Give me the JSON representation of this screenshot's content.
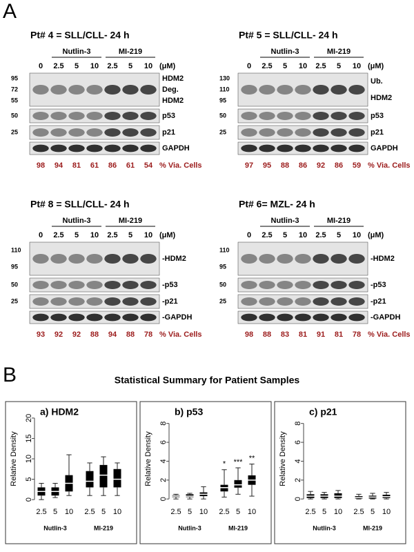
{
  "panel_labels": [
    "A",
    "B"
  ],
  "blots": [
    {
      "title": "Pt# 4 = SLL/CLL- 24 h",
      "groups": [
        "Nutlin-3",
        "MI-219"
      ],
      "doses": [
        "0",
        "2.5",
        "5",
        "10",
        "2.5",
        "5",
        "10"
      ],
      "unit": "(μM)",
      "strips": [
        {
          "markers": [
            "95",
            "72",
            "55"
          ],
          "labels": [
            "HDM2",
            "Deg.",
            "HDM2"
          ]
        },
        {
          "markers": [
            "50"
          ],
          "labels": [
            "p53"
          ]
        },
        {
          "markers": [
            "25"
          ],
          "labels": [
            "p21"
          ]
        },
        {
          "labels": [
            "GAPDH"
          ]
        }
      ],
      "viability": [
        98,
        94,
        81,
        61,
        86,
        61,
        54
      ],
      "viability_label": "% Via. Cells"
    },
    {
      "title": "Pt# 5 = SLL/CLL- 24 h",
      "groups": [
        "Nutlin-3",
        "MI-219"
      ],
      "doses": [
        "0",
        "2.5",
        "5",
        "10",
        "2.5",
        "5",
        "10"
      ],
      "unit": "(μM)",
      "strips": [
        {
          "markers": [
            "130",
            "110",
            "95"
          ],
          "labels": [
            "Ub.",
            "HDM2"
          ]
        },
        {
          "markers": [
            "50"
          ],
          "labels": [
            "p53"
          ]
        },
        {
          "markers": [
            "25"
          ],
          "labels": [
            "p21"
          ]
        },
        {
          "labels": [
            "GAPDH"
          ]
        }
      ],
      "viability": [
        97,
        95,
        88,
        86,
        92,
        86,
        59
      ],
      "viability_label": "% Via. Cells"
    },
    {
      "title": "Pt# 8 = SLL/CLL- 24 h",
      "groups": [
        "Nutlin-3",
        "MI-219"
      ],
      "doses": [
        "0",
        "2.5",
        "5",
        "10",
        "2.5",
        "5",
        "10"
      ],
      "unit": "(μM)",
      "strips": [
        {
          "markers": [
            "110",
            "95"
          ],
          "labels": [
            "-HDM2"
          ]
        },
        {
          "markers": [
            "50"
          ],
          "labels": [
            "-p53"
          ]
        },
        {
          "markers": [
            "25"
          ],
          "labels": [
            "-p21"
          ]
        },
        {
          "labels": [
            "-GAPDH"
          ]
        }
      ],
      "viability": [
        93,
        92,
        92,
        88,
        94,
        88,
        78
      ],
      "viability_label": "% Via. Cells"
    },
    {
      "title": "Pt# 6= MZL- 24 h",
      "groups": [
        "Nutlin-3",
        "MI-219"
      ],
      "doses": [
        "0",
        "2.5",
        "5",
        "10",
        "2.5",
        "5",
        "10"
      ],
      "unit": "(μM)",
      "strips": [
        {
          "markers": [
            "110",
            "95"
          ],
          "labels": [
            "-HDM2"
          ]
        },
        {
          "markers": [
            "50"
          ],
          "labels": [
            "-p53"
          ]
        },
        {
          "markers": [
            "25"
          ],
          "labels": [
            "-p21"
          ]
        },
        {
          "labels": [
            "-GAPDH"
          ]
        }
      ],
      "viability": [
        98,
        88,
        83,
        81,
        91,
        81,
        78
      ],
      "viability_label": "% Via. Cells"
    }
  ],
  "summary_title": "Statistical Summary for Patient Samples",
  "chart_data": [
    {
      "type": "box",
      "title": "a)  HDM2",
      "y_label": "Relative Density",
      "categories": [
        "2.5",
        "5",
        "10",
        "2.5",
        "5",
        "10"
      ],
      "groups": [
        "Nutlin-3",
        "MI-219"
      ],
      "ylim": [
        -1,
        21
      ],
      "yticks": [
        0,
        5,
        10,
        15,
        20
      ],
      "boxes": [
        {
          "min": 0,
          "q1": 1,
          "median": 2,
          "q3": 3,
          "max": 4
        },
        {
          "min": 0.5,
          "q1": 1,
          "median": 2,
          "q3": 3,
          "max": 4
        },
        {
          "min": 1,
          "q1": 2,
          "median": 4,
          "q3": 6,
          "max": 11
        },
        {
          "min": 1,
          "q1": 3,
          "median": 4.5,
          "q3": 7,
          "max": 9
        },
        {
          "min": 1,
          "q1": 3,
          "median": 6,
          "q3": 8.5,
          "max": 10.5
        },
        {
          "min": 1,
          "q1": 3,
          "median": 5,
          "q3": 7.5,
          "max": 9
        }
      ]
    },
    {
      "type": "box",
      "title": "b)  p53",
      "y_label": "Relative Density",
      "categories": [
        "2.5",
        "5",
        "10",
        "2.5",
        "5",
        "10"
      ],
      "groups": [
        "Nutlin-3",
        "MI-219"
      ],
      "ylim": [
        -0.5,
        9
      ],
      "yticks": [
        0,
        2,
        4,
        6,
        8
      ],
      "boxes": [
        {
          "min": 0,
          "q1": 0.2,
          "median": 0.3,
          "q3": 0.4,
          "max": 0.5
        },
        {
          "min": 0,
          "q1": 0.2,
          "median": 0.3,
          "q3": 0.5,
          "max": 0.6
        },
        {
          "min": 0,
          "q1": 0.3,
          "median": 0.5,
          "q3": 0.7,
          "max": 1.3
        },
        {
          "min": 0.2,
          "q1": 0.8,
          "median": 1.2,
          "q3": 1.5,
          "max": 3.1,
          "label": "*"
        },
        {
          "min": 0.5,
          "q1": 1.2,
          "median": 1.5,
          "q3": 2,
          "max": 3.3,
          "label": "***"
        },
        {
          "min": 0.3,
          "q1": 1.5,
          "median": 2,
          "q3": 2.5,
          "max": 3.7,
          "label": "**"
        }
      ]
    },
    {
      "type": "box",
      "title": "c)  p21",
      "y_label": "Relative Density",
      "categories": [
        "2.5",
        "5",
        "10",
        "2.5",
        "5",
        "10"
      ],
      "groups": [
        "Nutlin-3",
        "MI-219"
      ],
      "ylim": [
        -0.5,
        9
      ],
      "yticks": [
        0,
        2,
        4,
        6,
        8
      ],
      "boxes": [
        {
          "min": 0,
          "q1": 0.1,
          "median": 0.3,
          "q3": 0.5,
          "max": 0.8
        },
        {
          "min": 0,
          "q1": 0.1,
          "median": 0.3,
          "q3": 0.5,
          "max": 0.7
        },
        {
          "min": 0,
          "q1": 0.1,
          "median": 0.3,
          "q3": 0.6,
          "max": 0.9
        },
        {
          "min": 0,
          "q1": 0.05,
          "median": 0.15,
          "q3": 0.3,
          "max": 0.5
        },
        {
          "min": 0,
          "q1": 0.05,
          "median": 0.2,
          "q3": 0.35,
          "max": 0.6
        },
        {
          "min": 0,
          "q1": 0.1,
          "median": 0.25,
          "q3": 0.45,
          "max": 0.7
        }
      ]
    }
  ]
}
